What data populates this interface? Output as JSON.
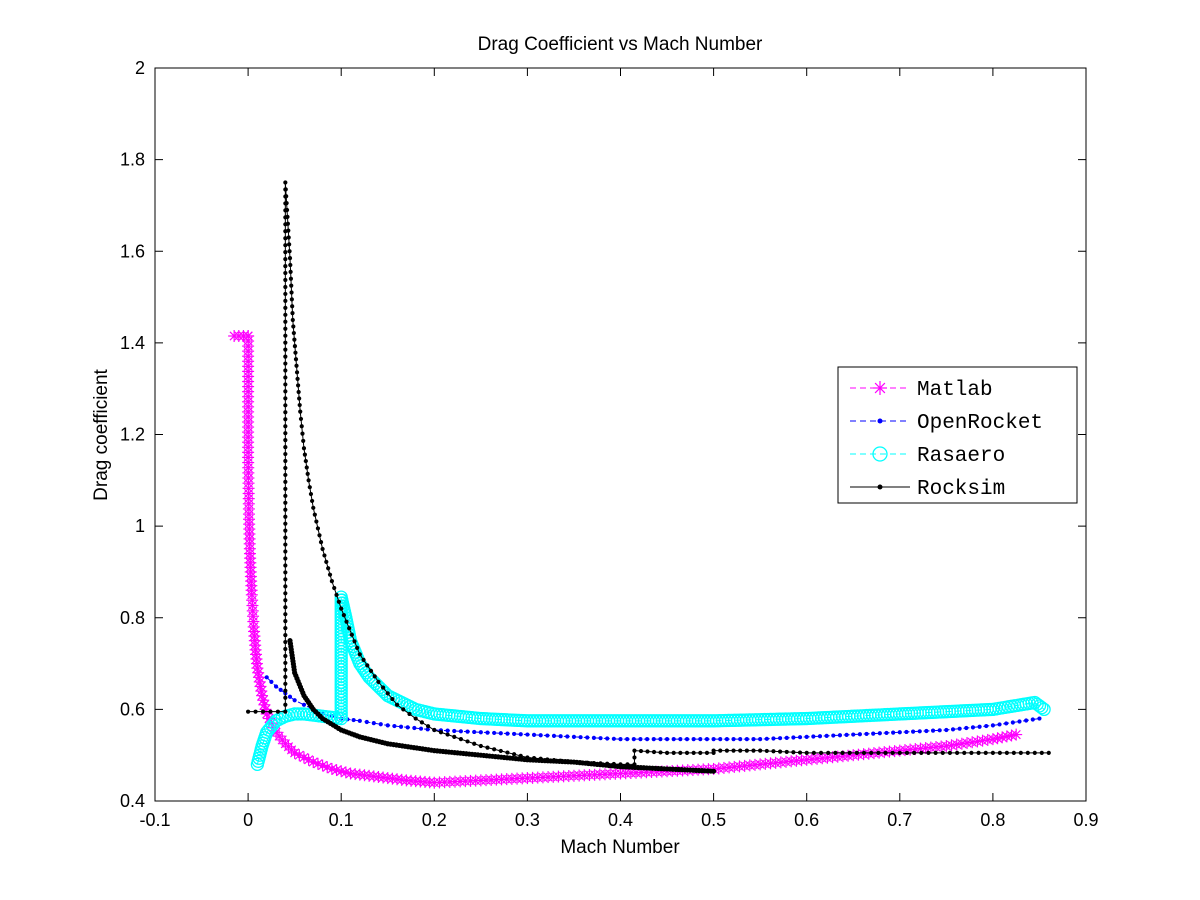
{
  "chart_data": {
    "type": "line",
    "title": "Drag Coefficient vs Mach Number",
    "xlabel": "Mach Number",
    "ylabel": "Drag coefficient",
    "xlim": [
      -0.1,
      0.9
    ],
    "ylim": [
      0.4,
      2.0
    ],
    "xticks": [
      "-0.1",
      "0",
      "0.1",
      "0.2",
      "0.3",
      "0.4",
      "0.5",
      "0.6",
      "0.7",
      "0.8",
      "0.9"
    ],
    "yticks": [
      "0.4",
      "0.6",
      "0.8",
      "1",
      "1.2",
      "1.4",
      "1.6",
      "1.8",
      "2"
    ],
    "grid": false,
    "legend_position": "right",
    "series": [
      {
        "name": "Matlab",
        "color": "#ff00ff",
        "line_style": "dashed",
        "marker": "asterisk",
        "x": [
          -0.015,
          0.0,
          0.0,
          0.0,
          0.001,
          0.002,
          0.003,
          0.004,
          0.005,
          0.006,
          0.008,
          0.01,
          0.015,
          0.02,
          0.03,
          0.04,
          0.05,
          0.07,
          0.09,
          0.11,
          0.13,
          0.15,
          0.17,
          0.2,
          0.25,
          0.3,
          0.35,
          0.4,
          0.45,
          0.5,
          0.55,
          0.6,
          0.65,
          0.7,
          0.75,
          0.8,
          0.825
        ],
        "y": [
          1.415,
          1.415,
          1.415,
          1.15,
          1.015,
          0.94,
          0.89,
          0.85,
          0.815,
          0.78,
          0.73,
          0.69,
          0.63,
          0.59,
          0.55,
          0.525,
          0.505,
          0.485,
          0.47,
          0.46,
          0.455,
          0.45,
          0.445,
          0.44,
          0.445,
          0.45,
          0.455,
          0.46,
          0.465,
          0.47,
          0.48,
          0.49,
          0.5,
          0.51,
          0.52,
          0.535,
          0.545
        ]
      },
      {
        "name": "OpenRocket",
        "color": "#0000ff",
        "line_style": "dashed",
        "marker": "point",
        "x": [
          0.02,
          0.03,
          0.04,
          0.05,
          0.06,
          0.07,
          0.08,
          0.09,
          0.1,
          0.12,
          0.15,
          0.2,
          0.25,
          0.3,
          0.35,
          0.4,
          0.45,
          0.5,
          0.55,
          0.6,
          0.65,
          0.7,
          0.75,
          0.8,
          0.85
        ],
        "y": [
          0.67,
          0.65,
          0.635,
          0.62,
          0.61,
          0.6,
          0.59,
          0.585,
          0.58,
          0.575,
          0.565,
          0.555,
          0.55,
          0.545,
          0.54,
          0.535,
          0.535,
          0.535,
          0.535,
          0.54,
          0.545,
          0.55,
          0.555,
          0.565,
          0.58
        ]
      },
      {
        "name": "Rasaero",
        "color": "#00ffff",
        "line_style": "dashed",
        "marker": "circle",
        "x": [
          0.01,
          0.015,
          0.02,
          0.03,
          0.04,
          0.05,
          0.06,
          0.08,
          0.1,
          0.1,
          0.105,
          0.11,
          0.12,
          0.13,
          0.15,
          0.18,
          0.2,
          0.25,
          0.3,
          0.4,
          0.5,
          0.6,
          0.7,
          0.75,
          0.8,
          0.83,
          0.845,
          0.855
        ],
        "y": [
          0.48,
          0.52,
          0.55,
          0.575,
          0.585,
          0.59,
          0.59,
          0.585,
          0.58,
          0.845,
          0.8,
          0.75,
          0.7,
          0.67,
          0.63,
          0.6,
          0.59,
          0.58,
          0.575,
          0.575,
          0.575,
          0.58,
          0.59,
          0.595,
          0.6,
          0.61,
          0.615,
          0.6
        ]
      },
      {
        "name": "Rocksim",
        "color": "#000000",
        "line_style": "solid",
        "marker": "point",
        "x": [
          0.0,
          0.04,
          0.04,
          0.045,
          0.048,
          0.052,
          0.056,
          0.06,
          0.065,
          0.07,
          0.08,
          0.09,
          0.1,
          0.12,
          0.14,
          0.16,
          0.18,
          0.2,
          0.25,
          0.3,
          0.35,
          0.4,
          0.415,
          0.415,
          0.45,
          0.5,
          0.5,
          0.55,
          0.6,
          0.7,
          0.8,
          0.86
        ],
        "y": [
          0.595,
          0.595,
          1.75,
          1.585,
          1.45,
          1.35,
          1.25,
          1.17,
          1.1,
          1.04,
          0.95,
          0.88,
          0.82,
          0.72,
          0.66,
          0.61,
          0.58,
          0.555,
          0.52,
          0.495,
          0.485,
          0.48,
          0.48,
          0.51,
          0.505,
          0.505,
          0.51,
          0.51,
          0.505,
          0.505,
          0.505,
          0.505
        ]
      },
      {
        "name": "",
        "color": "#000000",
        "line_style": "solid",
        "marker": "point",
        "x": [
          0.045,
          0.05,
          0.06,
          0.07,
          0.08,
          0.1,
          0.12,
          0.15,
          0.2,
          0.25,
          0.3,
          0.35,
          0.4,
          0.45,
          0.5
        ],
        "y": [
          0.75,
          0.68,
          0.63,
          0.6,
          0.58,
          0.555,
          0.54,
          0.525,
          0.51,
          0.5,
          0.49,
          0.485,
          0.475,
          0.47,
          0.465
        ]
      }
    ]
  }
}
